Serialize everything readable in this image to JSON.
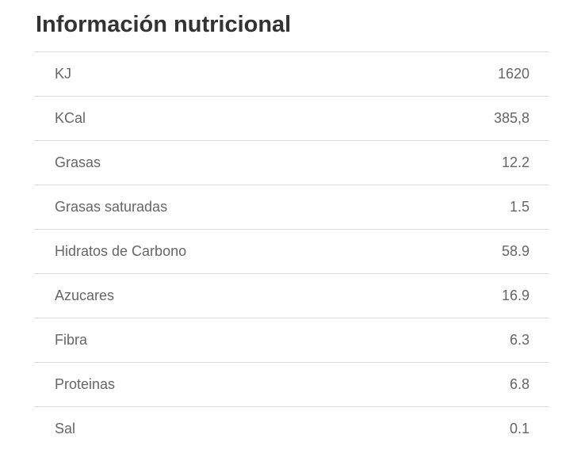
{
  "title": "Información nutricional",
  "rows": [
    {
      "label": "KJ",
      "value": "1620"
    },
    {
      "label": "KCal",
      "value": "385,8"
    },
    {
      "label": "Grasas",
      "value": "12.2"
    },
    {
      "label": "Grasas saturadas",
      "value": "1.5"
    },
    {
      "label": "Hidratos de Carbono",
      "value": "58.9"
    },
    {
      "label": "Azucares",
      "value": "16.9"
    },
    {
      "label": "Fibra",
      "value": "6.3"
    },
    {
      "label": "Proteinas",
      "value": "6.8"
    },
    {
      "label": "Sal",
      "value": "0.1"
    }
  ]
}
